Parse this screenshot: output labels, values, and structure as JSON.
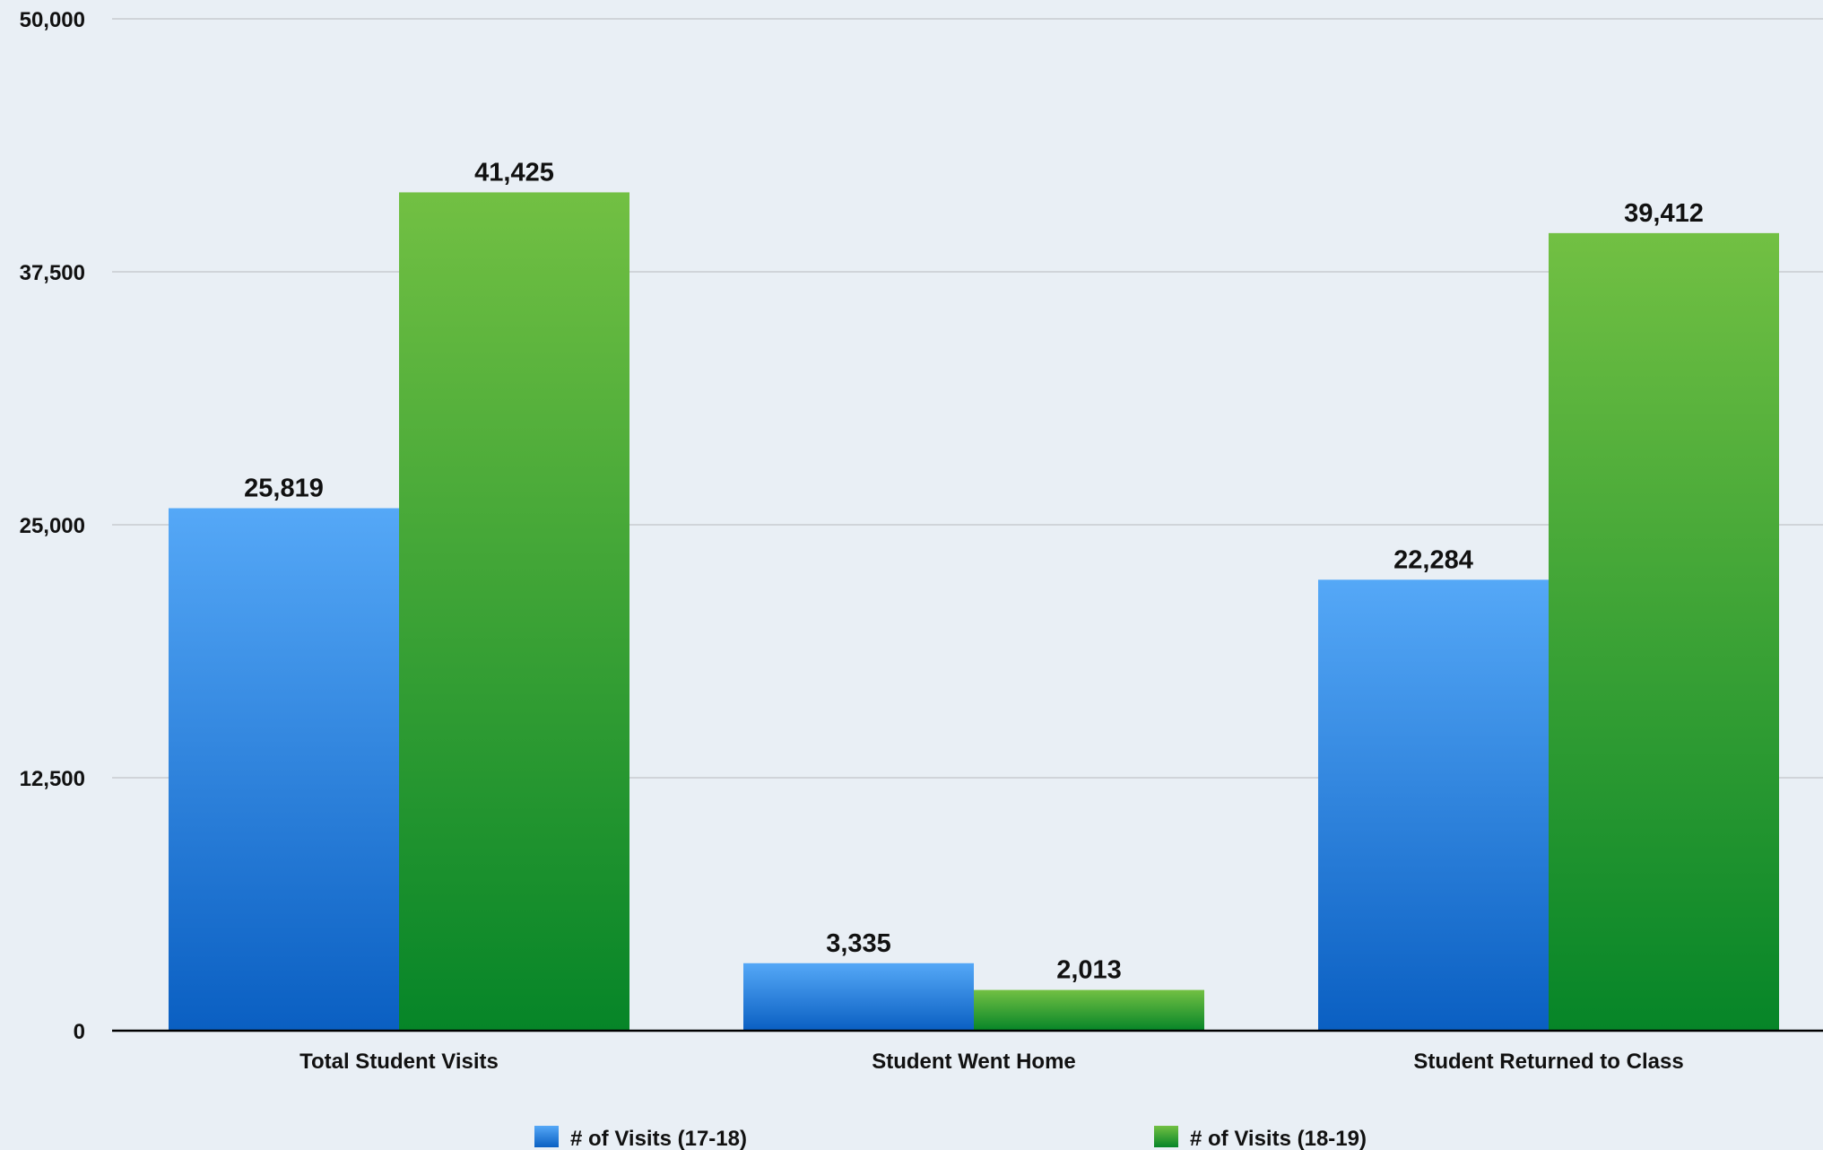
{
  "chart_data": {
    "type": "bar",
    "categories": [
      "Total Student Visits",
      "Student Went Home",
      "Student Returned to Class"
    ],
    "series": [
      {
        "name": "# of Visits (17-18)",
        "values": [
          25819,
          3335,
          22284
        ],
        "color": "#2f86e6"
      },
      {
        "name": "# of Visits (18-19)",
        "values": [
          41425,
          2013,
          39412
        ],
        "color": "#3aaa35"
      }
    ],
    "data_labels": [
      [
        "25,819",
        "3,335",
        "22,284"
      ],
      [
        "41,425",
        "2,013",
        "39,412"
      ]
    ],
    "y_ticks": [
      {
        "value": 0,
        "label": "0"
      },
      {
        "value": 12500,
        "label": "12,500"
      },
      {
        "value": 25000,
        "label": "25,000"
      },
      {
        "value": 37500,
        "label": "37,500"
      },
      {
        "value": 50000,
        "label": "50,000"
      }
    ],
    "ylim": [
      0,
      50000
    ],
    "title": "",
    "xlabel": "",
    "ylabel": "",
    "grid": true,
    "legend_position": "bottom"
  },
  "colors": {
    "background": "#e9eff5",
    "grid": "#c8ccd0",
    "axis": "#000000",
    "blue_top": "#55a8f7",
    "blue_bottom": "#0a5fc2",
    "green_top": "#72c043",
    "green_bottom": "#068528"
  }
}
